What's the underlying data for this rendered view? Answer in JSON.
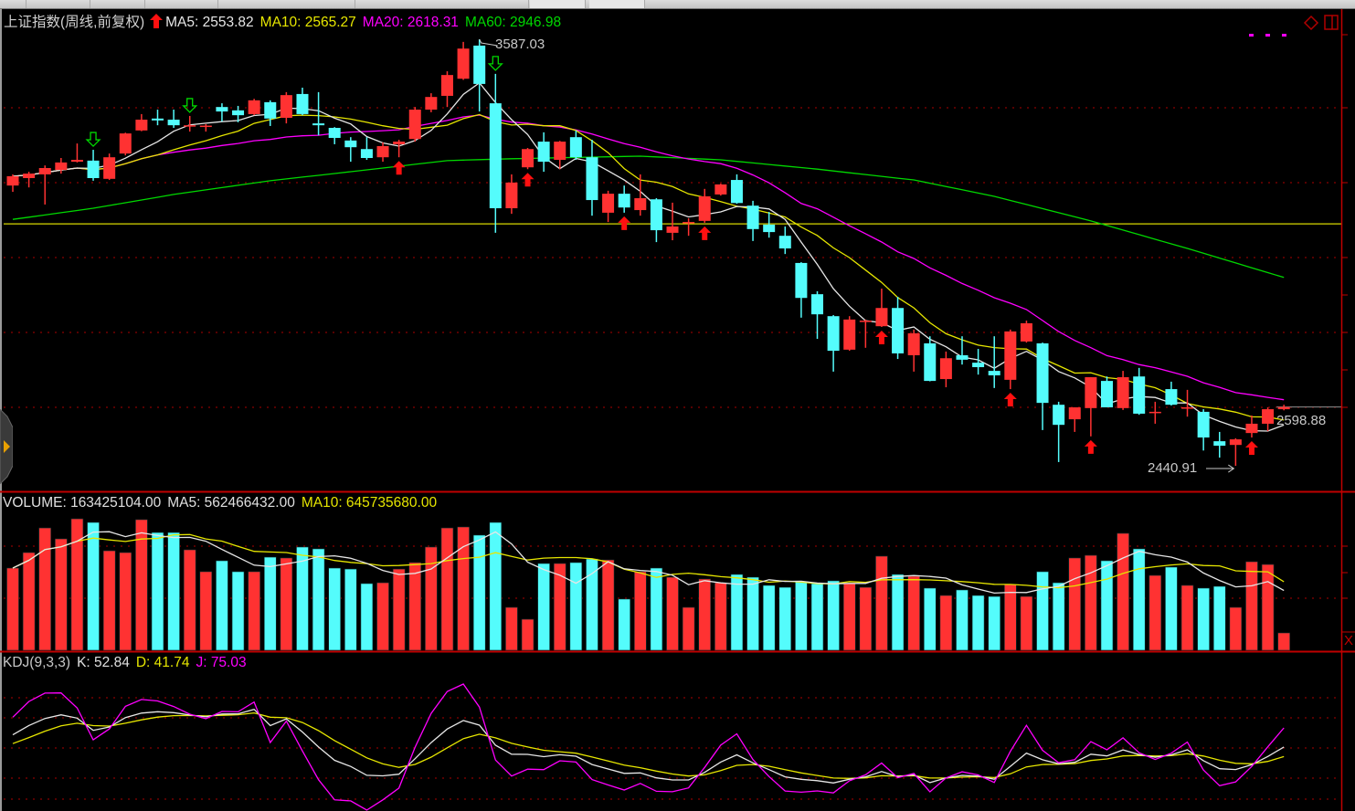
{
  "header": {
    "title": "上证指数(周线,前复权)",
    "ma5": "MA5: 2553.82",
    "ma10": "MA10: 2565.27",
    "ma20": "MA20: 2618.31",
    "ma60": "MA60: 2946.98"
  },
  "volume_header": {
    "volume": "VOLUME: 163425104.00",
    "ma5": "MA5: 562466432.00",
    "ma10": "MA10: 645735680.00"
  },
  "kdj_header": {
    "name": "KDJ(9,3,3)",
    "k": "K: 52.84",
    "d": "D: 41.74",
    "j": "J: 75.03"
  },
  "annotations": {
    "high_label": "3587.03",
    "low_label": "2440.91",
    "last_label": "2598.88"
  },
  "colors": {
    "up": "#ff3232",
    "down": "#54fcfc",
    "ma5": "#e6e6e6",
    "ma10": "#e6e600",
    "ma20": "#ff00ff",
    "ma60": "#00d800",
    "grid": "#8a0000",
    "axis": "#c00000",
    "buy_signal": "#ff1010",
    "sell_signal": "#00d800"
  },
  "icons": {
    "signal_up": "red-up-arrow-icon",
    "signal_down": "green-down-arrow-icon",
    "panel_toggle": "diamond-icon",
    "layout": "split-window-icon",
    "close": "close-x-icon",
    "side_handle": "expand-arrow-icon"
  },
  "chart_data": [
    {
      "type": "candlestick",
      "period": "weekly",
      "ylim": [
        2400,
        3620
      ],
      "grid": true,
      "candles_ohlc": [
        [
          3194,
          3224,
          3177,
          3219
        ],
        [
          3214,
          3231,
          3189,
          3226
        ],
        [
          3224,
          3248,
          3143,
          3241
        ],
        [
          3236,
          3268,
          3226,
          3256
        ],
        [
          3258,
          3307,
          3256,
          3263
        ],
        [
          3261,
          3290,
          3207,
          3214
        ],
        [
          3212,
          3280,
          3209,
          3270
        ],
        [
          3280,
          3336,
          3275,
          3334
        ],
        [
          3342,
          3386,
          3340,
          3371
        ],
        [
          3374,
          3398,
          3356,
          3369
        ],
        [
          3371,
          3398,
          3349,
          3356
        ],
        [
          3354,
          3381,
          3339,
          3356
        ],
        [
          3353,
          3359,
          3339,
          3355
        ],
        [
          3405,
          3415,
          3366,
          3393
        ],
        [
          3396,
          3408,
          3364,
          3383
        ],
        [
          3386,
          3427,
          3383,
          3423
        ],
        [
          3418,
          3423,
          3354,
          3374
        ],
        [
          3376,
          3445,
          3361,
          3437
        ],
        [
          3440,
          3457,
          3383,
          3386
        ],
        [
          3361,
          3445,
          3329,
          3356
        ],
        [
          3349,
          3351,
          3305,
          3322
        ],
        [
          3315,
          3324,
          3258,
          3297
        ],
        [
          3292,
          3324,
          3263,
          3268
        ],
        [
          3270,
          3310,
          3258,
          3300
        ],
        [
          3305,
          3317,
          3270,
          3312
        ],
        [
          3319,
          3405,
          3312,
          3398
        ],
        [
          3398,
          3442,
          3391,
          3432
        ],
        [
          3435,
          3501,
          3405,
          3491
        ],
        [
          3481,
          3580,
          3478,
          3562
        ],
        [
          3570,
          3587.03,
          3393,
          3467
        ],
        [
          3415,
          3494,
          3067,
          3133
        ],
        [
          3133,
          3224,
          3118,
          3202
        ],
        [
          3243,
          3295,
          3238,
          3292
        ],
        [
          3312,
          3337,
          3231,
          3258
        ],
        [
          3263,
          3314,
          3238,
          3312
        ],
        [
          3324,
          3342,
          3263,
          3270
        ],
        [
          3270,
          3317,
          3113,
          3155
        ],
        [
          3121,
          3180,
          3096,
          3172
        ],
        [
          3172,
          3194,
          3121,
          3135
        ],
        [
          3128,
          3224,
          3113,
          3160
        ],
        [
          3157,
          3160,
          3042,
          3074
        ],
        [
          3067,
          3148,
          3047,
          3084
        ],
        [
          3094,
          3106,
          3059,
          3096
        ],
        [
          3099,
          3185,
          3094,
          3165
        ],
        [
          3170,
          3199,
          3167,
          3197
        ],
        [
          3209,
          3224,
          3145,
          3147
        ],
        [
          3140,
          3153,
          3045,
          3077
        ],
        [
          3089,
          3123,
          3054,
          3069
        ],
        [
          3059,
          3084,
          3010,
          3025
        ],
        [
          2986,
          2988,
          2839,
          2892
        ],
        [
          2902,
          2910,
          2782,
          2848
        ],
        [
          2843,
          2846,
          2694,
          2750
        ],
        [
          2753,
          2843,
          2750,
          2834
        ],
        [
          2829,
          2834,
          2758,
          2831
        ],
        [
          2816,
          2917,
          2814,
          2865
        ],
        [
          2865,
          2895,
          2728,
          2743
        ],
        [
          2738,
          2807,
          2694,
          2797
        ],
        [
          2770,
          2789,
          2668,
          2669
        ],
        [
          2674,
          2748,
          2652,
          2730
        ],
        [
          2738,
          2789,
          2713,
          2726
        ],
        [
          2718,
          2755,
          2686,
          2706
        ],
        [
          2696,
          2789,
          2650,
          2684
        ],
        [
          2672,
          2807,
          2647,
          2802
        ],
        [
          2775,
          2831,
          2772,
          2824
        ],
        [
          2770,
          2772,
          2537,
          2610
        ],
        [
          2605,
          2613,
          2451,
          2551
        ],
        [
          2566,
          2598,
          2532,
          2598
        ],
        [
          2596,
          2679,
          2520,
          2679
        ],
        [
          2669,
          2681,
          2598,
          2598
        ],
        [
          2596,
          2696,
          2591,
          2679
        ],
        [
          2681,
          2704,
          2578,
          2581
        ],
        [
          2583,
          2613,
          2554,
          2586
        ],
        [
          2647,
          2667,
          2603,
          2605
        ],
        [
          2595,
          2645,
          2573,
          2598
        ],
        [
          2586,
          2593,
          2482,
          2517
        ],
        [
          2507,
          2532,
          2463,
          2495
        ],
        [
          2497,
          2515,
          2440.91,
          2512
        ],
        [
          2529,
          2576,
          2517,
          2554
        ],
        [
          2554,
          2598,
          2534,
          2593
        ],
        [
          2593,
          2605,
          2590,
          2598.88
        ]
      ],
      "ma60_points": [
        [
          0,
          3103
        ],
        [
          5,
          3133
        ],
        [
          10,
          3170
        ],
        [
          16,
          3207
        ],
        [
          22,
          3236
        ],
        [
          27,
          3261
        ],
        [
          31,
          3266
        ],
        [
          39,
          3273
        ],
        [
          44,
          3263
        ],
        [
          50,
          3238
        ],
        [
          56,
          3209
        ],
        [
          61,
          3165
        ],
        [
          67,
          3099
        ],
        [
          73,
          3025
        ],
        [
          79,
          2946.98
        ]
      ],
      "reference_line": 3091,
      "buy_signals": [
        24,
        32,
        38,
        43,
        54,
        62,
        67,
        77
      ],
      "sell_signals": [
        5,
        11,
        30
      ],
      "high_index": 29,
      "low_index": 76
    },
    {
      "type": "bar",
      "name": "VOLUME",
      "ylim": [
        0,
        1450000000
      ],
      "values": [
        774000000,
        920000000,
        1152000000,
        1049000000,
        1238000000,
        1204000000,
        937000000,
        920000000,
        1230000000,
        1109000000,
        1109000000,
        946000000,
        740000000,
        843000000,
        740000000,
        740000000,
        877000000,
        869000000,
        972000000,
        955000000,
        774000000,
        765000000,
        628000000,
        636000000,
        765000000,
        826000000,
        972000000,
        1152000000,
        1161000000,
        1084000000,
        1204000000,
        404000000,
        292000000,
        817000000,
        817000000,
        826000000,
        860000000,
        851000000,
        482000000,
        740000000,
        774000000,
        688000000,
        404000000,
        671000000,
        636000000,
        714000000,
        688000000,
        611000000,
        593000000,
        645000000,
        628000000,
        654000000,
        628000000,
        593000000,
        886000000,
        714000000,
        697000000,
        585000000,
        516000000,
        568000000,
        516000000,
        507000000,
        619000000,
        507000000,
        740000000,
        636000000,
        869000000,
        894000000,
        843000000,
        1101000000,
        955000000,
        705000000,
        783000000,
        611000000,
        585000000,
        602000000,
        404000000,
        834000000,
        808000000,
        163425104
      ]
    },
    {
      "type": "line",
      "name": "KDJ(9,3,3)",
      "ylim": [
        -12,
        130
      ],
      "params": [
        9,
        3,
        3
      ],
      "gridlines": [
        0,
        20,
        50,
        80,
        100
      ]
    }
  ]
}
